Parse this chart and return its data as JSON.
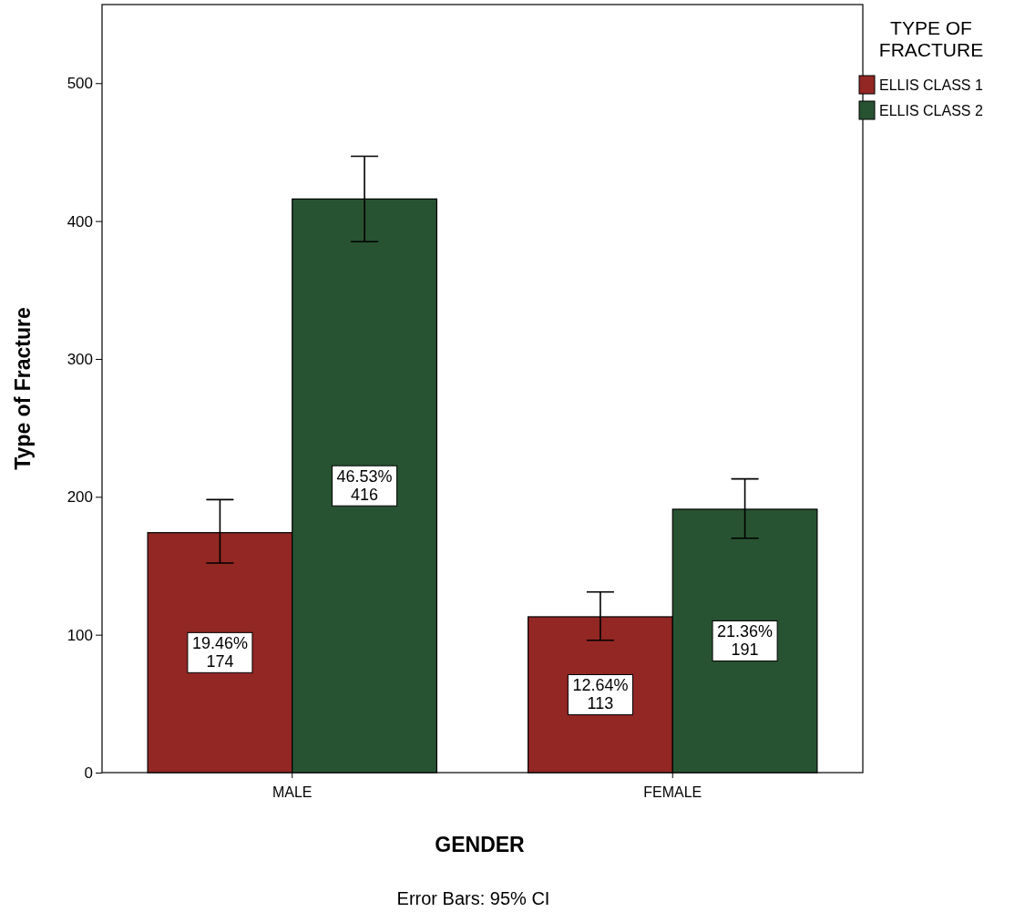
{
  "chart_data": {
    "type": "bar",
    "xlabel": "GENDER",
    "ylabel": "Type of Fracture",
    "legend_title": "TYPE OF\nFRACTURE",
    "categories": [
      "MALE",
      "FEMALE"
    ],
    "series": [
      {
        "name": "ELLIS CLASS 1",
        "color": "#922724",
        "values": [
          174,
          113
        ],
        "errors": [
          [
            152,
            198
          ],
          [
            96,
            131
          ]
        ],
        "value_labels": [
          "19.46%\n174",
          "12.64%\n113"
        ]
      },
      {
        "name": "ELLIS CLASS 2",
        "color": "#285332",
        "values": [
          416,
          191
        ],
        "errors": [
          [
            385,
            447
          ],
          [
            170,
            213
          ]
        ],
        "value_labels": [
          "46.53%\n416",
          "21.36%\n191"
        ]
      }
    ],
    "ylim": [
      0,
      557
    ],
    "yticks": [
      0,
      100,
      200,
      300,
      400,
      500
    ],
    "grid": false,
    "legend": "top right",
    "annotations": [
      "Error Bars: 95% CI"
    ]
  }
}
